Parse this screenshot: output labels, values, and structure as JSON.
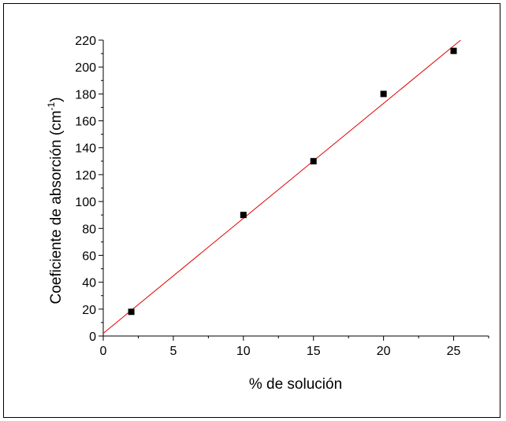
{
  "chart_data": {
    "type": "scatter",
    "xlabel": "% de solución",
    "ylabel_main": "Coeficiente de absorción (cm",
    "ylabel_sup": "-1",
    "ylabel_close": ")",
    "xlim": [
      0,
      27.5
    ],
    "ylim": [
      0,
      220
    ],
    "x_ticks": [
      0,
      5,
      10,
      15,
      20,
      25
    ],
    "y_ticks": [
      0,
      20,
      40,
      60,
      80,
      100,
      120,
      140,
      160,
      180,
      200,
      220
    ],
    "x_minor_step": 2.5,
    "y_minor_step": 10,
    "grid": false,
    "series": [
      {
        "x": [
          2,
          10,
          15,
          20,
          25
        ],
        "y": [
          18,
          90,
          130,
          180,
          212
        ],
        "marker": "square",
        "color": "#000000"
      }
    ],
    "fit_line": {
      "x": [
        0,
        25.5
      ],
      "y": [
        2,
        220
      ],
      "color": "#e00000"
    }
  }
}
